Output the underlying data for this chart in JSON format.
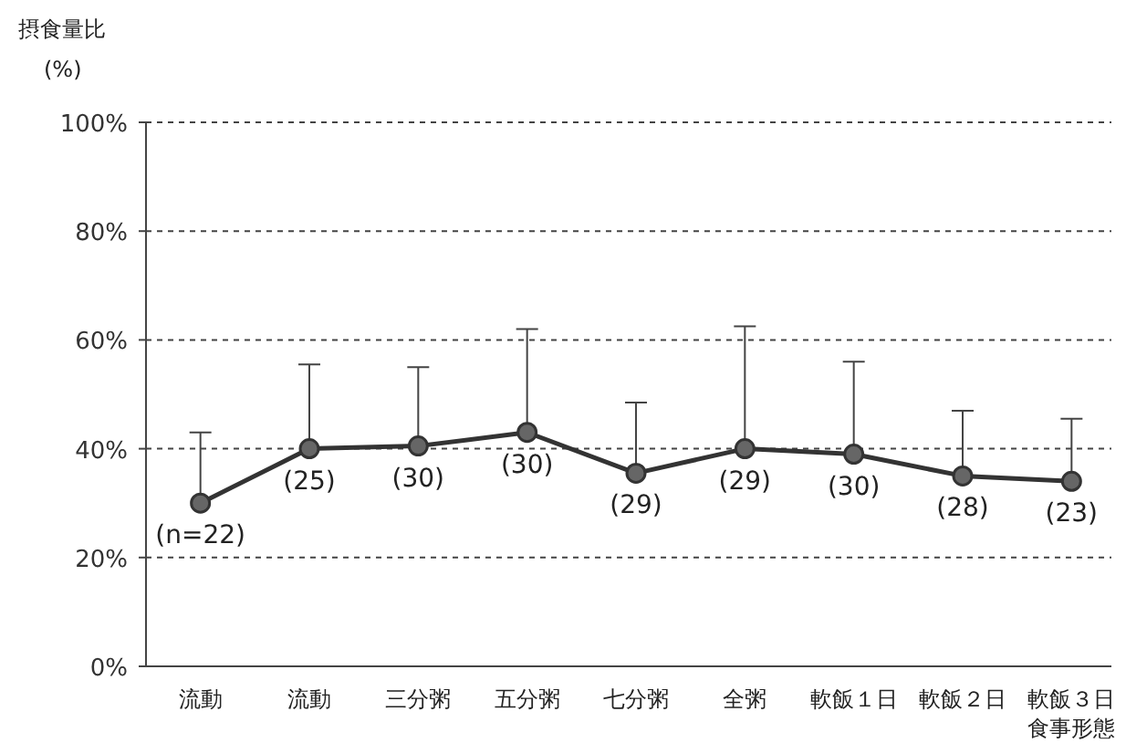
{
  "chart_data": {
    "type": "line",
    "ylabel": "摂食量比 (%)",
    "xlabel": "食事形態",
    "categories": [
      "流動",
      "流動",
      "三分粥",
      "五分粥",
      "七分粥",
      "全粥",
      "軟飯１日",
      "軟飯２日",
      "軟飯３日"
    ],
    "series": [
      {
        "color": "#333333",
        "values": [
          30,
          40,
          40.5,
          43,
          35.5,
          40,
          39,
          35,
          34
        ],
        "errors": [
          [
            30,
            43
          ],
          [
            40,
            55.5
          ],
          [
            40.5,
            55
          ],
          [
            43,
            62
          ],
          [
            35.5,
            48.5
          ],
          [
            40,
            62.5
          ],
          [
            39,
            56
          ],
          [
            35,
            47
          ],
          [
            34,
            45.5
          ]
        ]
      }
    ],
    "ylim": [
      0,
      100
    ],
    "yticks": [
      {
        "value": 0,
        "label": "0%"
      },
      {
        "value": 20,
        "label": "20%"
      },
      {
        "value": 40,
        "label": "40%"
      },
      {
        "value": 60,
        "label": "60%"
      },
      {
        "value": 80,
        "label": "80%"
      },
      {
        "value": 100,
        "label": "100%"
      }
    ],
    "grid": "y",
    "marker": "circle",
    "line_style": "solid",
    "annotations": [
      {
        "text": "(n=22)",
        "x": "流動",
        "y": 30
      },
      "(25)",
      {
        "text": "(30)",
        "x": "三分粥",
        "y": 40.5
      },
      {
        "text": "(30)",
        "x": "五分粥",
        "y": 43
      },
      {
        "text": "(29)",
        "x": "七分粥",
        "y": 35.5
      },
      {
        "text": "(29)",
        "x": "全粥",
        "y": 40
      },
      {
        "text": "(30)",
        "x": "軟飯１日",
        "y": 39
      },
      {
        "text": "(28)",
        "x": "軟飯２日",
        "y": 35
      },
      {
        "text": "(23)",
        "x": "軟飯３日",
        "y": 34
      }
    ]
  }
}
